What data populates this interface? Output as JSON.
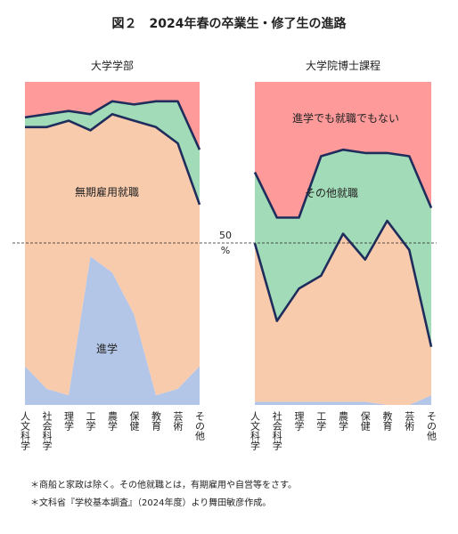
{
  "figure": {
    "title": "図２　2024年春の卒業生・修了生の進路",
    "note1": "＊商船と家政は除く。その他就職とは，有期雇用や自営等をさす。",
    "note2": "＊文科省『学校基本調査』（2024年度）より舞田敏彦作成。",
    "fifty_label": "50",
    "percent_label": "%"
  },
  "colors": {
    "advance": "#b4c6e7",
    "regular": "#f8cbad",
    "other": "#a2dbb8",
    "none": "#fe9a9a",
    "line": "#1f2d5c"
  },
  "chart_data": [
    {
      "type": "area",
      "stacked": true,
      "title": "大学学部",
      "categories": [
        "人文科学",
        "社会科学",
        "理学",
        "工学",
        "農学",
        "保健",
        "教育",
        "芸術",
        "その他"
      ],
      "series": [
        {
          "name": "進学",
          "values": [
            12,
            5,
            3,
            46,
            41,
            28,
            3,
            5,
            12
          ]
        },
        {
          "name": "無期雇用就職",
          "values": [
            74,
            81,
            85,
            39,
            49,
            60,
            83,
            76,
            50
          ]
        },
        {
          "name": "その他就職",
          "values": [
            3,
            4,
            3,
            5,
            4,
            5,
            8,
            13,
            17
          ]
        },
        {
          "name": "進学でも就職でもない",
          "values": [
            11,
            10,
            9,
            10,
            6,
            7,
            6,
            6,
            21
          ]
        }
      ],
      "series_labels": [
        {
          "series": "進学",
          "text": "進学"
        },
        {
          "series": "無期雇用就職",
          "text": "無期雇用就職"
        }
      ],
      "ylim": [
        0,
        100
      ],
      "reference_line": 50
    },
    {
      "type": "area",
      "stacked": true,
      "title": "大学院博士課程",
      "categories": [
        "人文科学",
        "社会科学",
        "理学",
        "工学",
        "農学",
        "保健",
        "教育",
        "芸術",
        "その他"
      ],
      "series": [
        {
          "name": "進学",
          "values": [
            1,
            1,
            1,
            1,
            1,
            1,
            0,
            0,
            3
          ]
        },
        {
          "name": "無期雇用就職",
          "values": [
            49,
            25,
            35,
            39,
            52,
            44,
            57,
            48,
            15
          ]
        },
        {
          "name": "その他就職",
          "values": [
            22,
            32,
            22,
            37,
            26,
            33,
            21,
            29,
            43
          ]
        },
        {
          "name": "進学でも就職でもない",
          "values": [
            28,
            42,
            42,
            23,
            21,
            22,
            22,
            23,
            39
          ]
        }
      ],
      "series_labels": [
        {
          "series": "その他就職",
          "text": "その他就職"
        },
        {
          "series": "進学でも就職でもない",
          "text": "進学でも就職でもない"
        }
      ],
      "ylim": [
        0,
        100
      ],
      "reference_line": 50
    }
  ]
}
